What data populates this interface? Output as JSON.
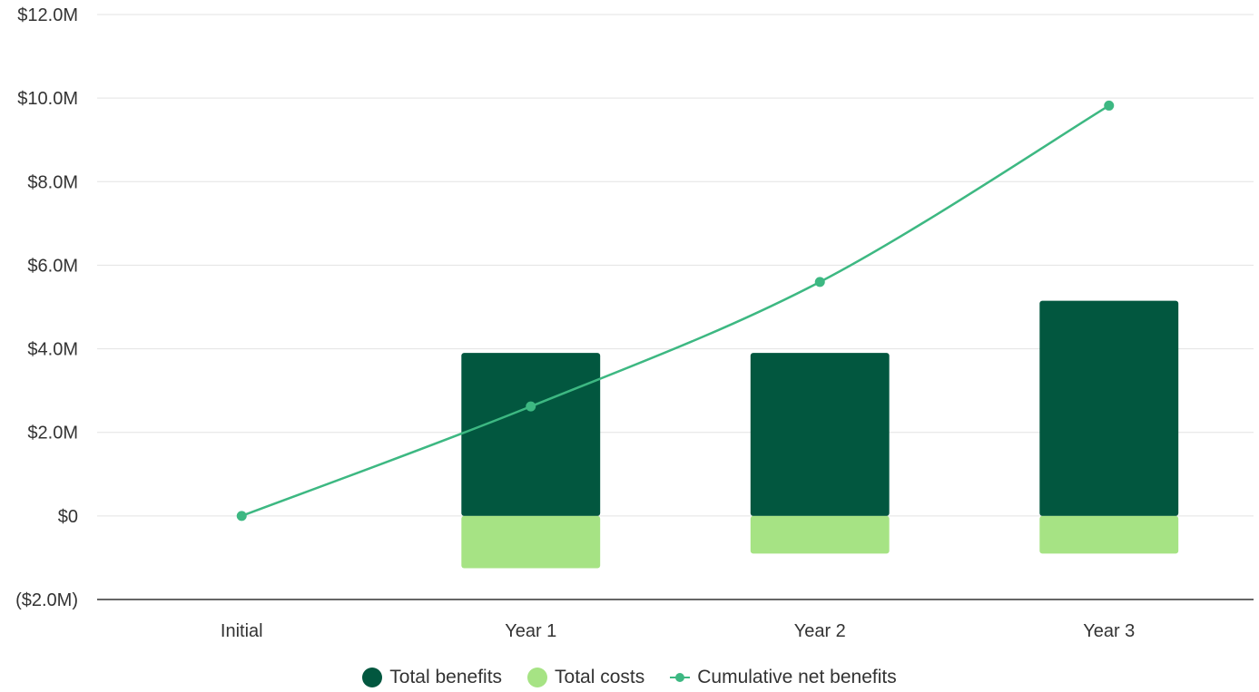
{
  "chart_data": {
    "type": "bar",
    "categories": [
      "Initial",
      "Year 1",
      "Year 2",
      "Year 3"
    ],
    "series": [
      {
        "name": "Total benefits",
        "kind": "bar",
        "color": "#02573f",
        "values": [
          0,
          3.9,
          3.9,
          5.15
        ]
      },
      {
        "name": "Total costs",
        "kind": "bar",
        "color": "#a6e384",
        "values": [
          0,
          -1.25,
          -0.9,
          -0.9
        ]
      },
      {
        "name": "Cumulative net benefits",
        "kind": "line",
        "color": "#3db882",
        "values": [
          0,
          2.62,
          5.6,
          9.82
        ]
      }
    ],
    "y_ticks": [
      {
        "value": -2,
        "label": "($2.0M)"
      },
      {
        "value": 0,
        "label": "$0"
      },
      {
        "value": 2,
        "label": "$2.0M"
      },
      {
        "value": 4,
        "label": "$4.0M"
      },
      {
        "value": 6,
        "label": "$6.0M"
      },
      {
        "value": 8,
        "label": "$8.0M"
      },
      {
        "value": 10,
        "label": "$10.0M"
      },
      {
        "value": 12,
        "label": "$12.0M"
      }
    ],
    "ylim": [
      -2,
      12
    ],
    "grid": true,
    "legend_position": "bottom-center"
  }
}
